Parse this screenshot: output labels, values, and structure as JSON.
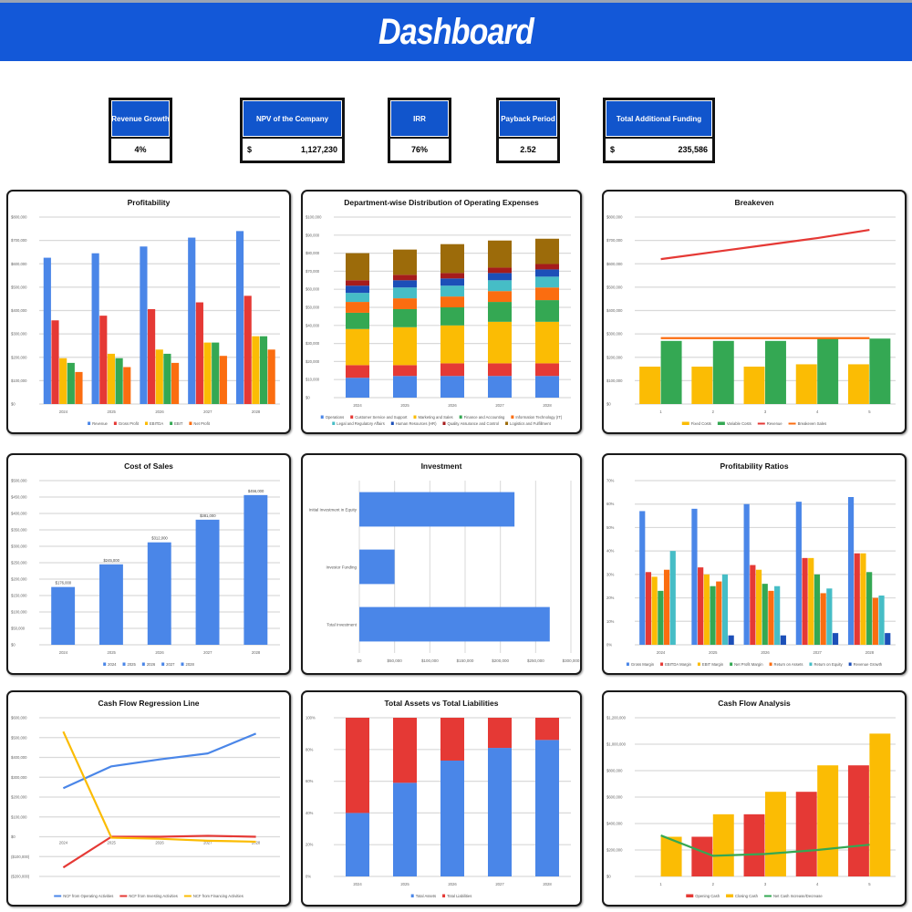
{
  "header": {
    "title": "Dashboard"
  },
  "kpis": [
    {
      "label": "Revenue Growth",
      "value": "4%",
      "currency": ""
    },
    {
      "label": "NPV of the Company",
      "value": "1,127,230",
      "currency": "$"
    },
    {
      "label": "IRR",
      "value": "76%",
      "currency": ""
    },
    {
      "label": "Payback Period",
      "value": "2.52",
      "currency": ""
    },
    {
      "label": "Total Additional Funding",
      "value": "235,586",
      "currency": "$"
    }
  ],
  "colors": {
    "header": "#1358d8",
    "kpi_header": "#1155cc"
  },
  "chart_data": [
    {
      "id": "profitability",
      "type": "bar",
      "title": "Profitability",
      "categories": [
        "2024",
        "2025",
        "2026",
        "2027",
        "2028"
      ],
      "ylim": [
        0,
        800000
      ],
      "yticks": [
        "$0",
        "$100,000",
        "$200,000",
        "$300,000",
        "$400,000",
        "$500,000",
        "$600,000",
        "$700,000",
        "$800,000"
      ],
      "series": [
        {
          "name": "Revenue",
          "color": "#4a86e8",
          "values": [
            626000,
            645000,
            674000,
            712000,
            740000
          ]
        },
        {
          "name": "Gross Profit",
          "color": "#e53935",
          "values": [
            358000,
            378000,
            406000,
            435000,
            463000
          ]
        },
        {
          "name": "EBITDA",
          "color": "#fbbc04",
          "values": [
            196000,
            215000,
            233000,
            263000,
            290000
          ]
        },
        {
          "name": "EBIT",
          "color": "#34a853",
          "values": [
            176000,
            196000,
            215000,
            263000,
            290000
          ]
        },
        {
          "name": "Net Profit",
          "color": "#fb6d10",
          "values": [
            137000,
            158000,
            176000,
            206000,
            233000
          ]
        }
      ]
    },
    {
      "id": "opex",
      "type": "stacked",
      "title": "Department-wise Distribution of Operating Expenses",
      "categories": [
        "2024",
        "2025",
        "2026",
        "2027",
        "2028"
      ],
      "ylim": [
        0,
        100000
      ],
      "yticks": [
        "$0",
        "$10,000",
        "$20,000",
        "$30,000",
        "$40,000",
        "$50,000",
        "$60,000",
        "$70,000",
        "$80,000",
        "$90,000",
        "$100,000"
      ],
      "series": [
        {
          "name": "Operations",
          "color": "#4a86e8",
          "values": [
            11000,
            12000,
            12000,
            12000,
            12000
          ]
        },
        {
          "name": "Customer Service and Support",
          "color": "#e53935",
          "values": [
            7000,
            6000,
            7000,
            7000,
            7000
          ]
        },
        {
          "name": "Marketing and Sales",
          "color": "#fbbc04",
          "values": [
            20000,
            21000,
            21000,
            23000,
            23000
          ]
        },
        {
          "name": "Finance and Accounting",
          "color": "#34a853",
          "values": [
            9000,
            10000,
            10000,
            11000,
            12000
          ]
        },
        {
          "name": "Information Technology (IT)",
          "color": "#fb6d10",
          "values": [
            6000,
            6000,
            6000,
            6000,
            7000
          ]
        },
        {
          "name": "Legal and Regulatory Affairs",
          "color": "#46bdc6",
          "values": [
            5000,
            6000,
            6000,
            6000,
            6000
          ]
        },
        {
          "name": "Human Resources (HR)",
          "color": "#1c4fb8",
          "values": [
            4000,
            4000,
            4000,
            4000,
            4000
          ]
        },
        {
          "name": "Quality Assurance and Control",
          "color": "#a61c1c",
          "values": [
            3000,
            3000,
            3000,
            3000,
            3000
          ]
        },
        {
          "name": "Logistics and Fulfillment",
          "color": "#9c6b0a",
          "values": [
            15000,
            14000,
            16000,
            15000,
            14000
          ]
        }
      ]
    },
    {
      "id": "breakeven",
      "type": "combo",
      "title": "Breakeven",
      "categories": [
        "1",
        "2",
        "3",
        "4",
        "5"
      ],
      "ylim": [
        0,
        800000
      ],
      "yticks": [
        "$0",
        "$100,000",
        "$200,000",
        "$300,000",
        "$400,000",
        "$500,000",
        "$600,000",
        "$700,000",
        "$800,000"
      ],
      "series": [
        {
          "name": "Fixed Costs",
          "kind": "bar",
          "color": "#fbbc04",
          "values": [
            160000,
            160000,
            160000,
            170000,
            170000
          ]
        },
        {
          "name": "Variable Costs",
          "kind": "bar",
          "color": "#34a853",
          "values": [
            270000,
            270000,
            270000,
            280000,
            280000
          ]
        },
        {
          "name": "Revenue",
          "kind": "line",
          "color": "#e53935",
          "values": [
            620000,
            650000,
            680000,
            710000,
            745000
          ]
        },
        {
          "name": "Breakeven Sales",
          "kind": "line",
          "color": "#fb6d10",
          "values": [
            282000,
            282000,
            282000,
            282000,
            282000
          ]
        }
      ]
    },
    {
      "id": "cost-of-sales",
      "type": "bar",
      "title": "Cost of Sales",
      "category_legend": true,
      "data_labels": true,
      "categories": [
        "2024",
        "2025",
        "2026",
        "2027",
        "2028"
      ],
      "ylim": [
        0,
        500000
      ],
      "yticks": [
        "$0",
        "$50,000",
        "$100,000",
        "$150,000",
        "$200,000",
        "$250,000",
        "$300,000",
        "$350,000",
        "$400,000",
        "$450,000",
        "$500,000"
      ],
      "series": [
        {
          "name": "Cost of Sales",
          "color": "#4a86e8",
          "values": [
            176000,
            245000,
            312000,
            381000,
            456000
          ],
          "labels": [
            "$176,000",
            "$245,000",
            "$312,000",
            "$381,000",
            "$456,000"
          ]
        }
      ]
    },
    {
      "id": "investment",
      "type": "hbar",
      "title": "Investment",
      "categories": [
        "Initial Investment in Equity",
        "Investor Funding",
        "Total Investment"
      ],
      "xlim": [
        0,
        300000
      ],
      "xticks": [
        "$0",
        "$50,000",
        "$100,000",
        "$150,000",
        "$200,000",
        "$250,000",
        "$300,000"
      ],
      "series": [
        {
          "name": "Investment",
          "color": "#4a86e8",
          "values": [
            220000,
            50000,
            270000
          ]
        }
      ]
    },
    {
      "id": "ratios",
      "type": "bar",
      "title": "Profitability Ratios",
      "categories": [
        "2024",
        "2025",
        "2026",
        "2027",
        "2028"
      ],
      "ylim": [
        0,
        70
      ],
      "yticks": [
        "0%",
        "10%",
        "20%",
        "30%",
        "40%",
        "50%",
        "60%",
        "70%"
      ],
      "series": [
        {
          "name": "Gross Margin",
          "color": "#4a86e8",
          "values": [
            57,
            58,
            60,
            61,
            63
          ]
        },
        {
          "name": "EBITDA Margin",
          "color": "#e53935",
          "values": [
            31,
            33,
            34,
            37,
            39
          ]
        },
        {
          "name": "EBIT Margin",
          "color": "#fbbc04",
          "values": [
            29,
            30,
            32,
            37,
            39
          ]
        },
        {
          "name": "Net Profit Margin",
          "color": "#34a853",
          "values": [
            23,
            25,
            26,
            30,
            31
          ]
        },
        {
          "name": "Return on Assets",
          "color": "#fb6d10",
          "values": [
            32,
            27,
            23,
            22,
            20
          ]
        },
        {
          "name": "Return on Equity",
          "color": "#46bdc6",
          "values": [
            40,
            30,
            25,
            24,
            21
          ]
        },
        {
          "name": "Revenue Growth",
          "color": "#1c4fb8",
          "values": [
            0,
            4,
            4,
            5,
            5
          ]
        }
      ]
    },
    {
      "id": "cf-regression",
      "type": "line",
      "title": "Cash Flow Regression Line",
      "categories": [
        "2024",
        "2025",
        "2026",
        "2027",
        "2028"
      ],
      "ylim": [
        -200000,
        600000
      ],
      "yticks": [
        "($200,000)",
        "($100,000)",
        "$0",
        "$100,000",
        "$200,000",
        "$300,000",
        "$400,000",
        "$500,000",
        "$600,000"
      ],
      "series": [
        {
          "name": "NCF from Operating Activities",
          "color": "#4a86e8",
          "values": [
            245000,
            355000,
            390000,
            420000,
            520000
          ]
        },
        {
          "name": "NCF from Investing Activities",
          "color": "#e53935",
          "values": [
            -155000,
            0,
            0,
            5000,
            0
          ]
        },
        {
          "name": "NCF from Financing Activities",
          "color": "#fbbc04",
          "values": [
            530000,
            -5000,
            -10000,
            -20000,
            -25000
          ]
        }
      ]
    },
    {
      "id": "assets-liabilities",
      "type": "stacked",
      "title": "Total Assets vs Total Liabilities",
      "categories": [
        "2024",
        "2025",
        "2026",
        "2027",
        "2028"
      ],
      "ylim": [
        0,
        100
      ],
      "yticks": [
        "0%",
        "20%",
        "40%",
        "60%",
        "80%",
        "100%"
      ],
      "series": [
        {
          "name": "Total Assets",
          "color": "#4a86e8",
          "values": [
            40,
            59,
            73,
            81,
            86
          ]
        },
        {
          "name": "Total Liabilities",
          "color": "#e53935",
          "values": [
            60,
            41,
            27,
            19,
            14
          ]
        }
      ]
    },
    {
      "id": "cf-analysis",
      "type": "combo",
      "title": "Cash Flow Analysis",
      "categories": [
        "1",
        "2",
        "3",
        "4",
        "5"
      ],
      "ylim": [
        0,
        1200000
      ],
      "yticks": [
        "$0",
        "$200,000",
        "$400,000",
        "$600,000",
        "$800,000",
        "$1,000,000",
        "$1,200,000"
      ],
      "series": [
        {
          "name": "Opening Cash",
          "kind": "bar",
          "color": "#e53935",
          "values": [
            0,
            300000,
            470000,
            640000,
            840000
          ]
        },
        {
          "name": "Closing Cash",
          "kind": "bar",
          "color": "#fbbc04",
          "values": [
            300000,
            470000,
            640000,
            840000,
            1080000
          ]
        },
        {
          "name": "Net Cash Increase/Decrease",
          "kind": "line",
          "color": "#34a853",
          "values": [
            310000,
            156000,
            170000,
            200000,
            240000
          ]
        }
      ]
    }
  ]
}
